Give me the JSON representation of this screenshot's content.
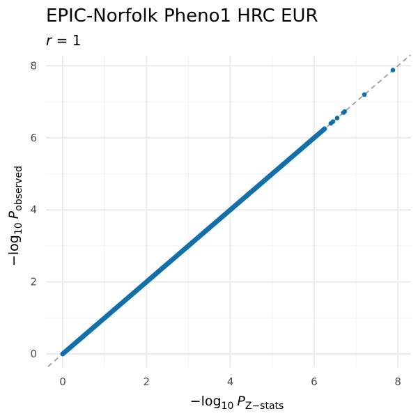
{
  "chart_data": {
    "type": "scatter",
    "title": "EPIC-Norfolk Pheno1 HRC EUR",
    "subtitle": {
      "symbol": "r",
      "rest": " = 1"
    },
    "xlabel": {
      "prefix": "−log",
      "base": "10",
      "var": "P",
      "subscript": "Z−stats"
    },
    "ylabel": {
      "prefix": "−log",
      "base": "10",
      "var": "P",
      "subscript": "observed"
    },
    "xlim": [
      -0.35,
      8.3
    ],
    "ylim": [
      -0.35,
      8.3
    ],
    "x_ticks": [
      0,
      2,
      4,
      6,
      8
    ],
    "y_ticks": [
      0,
      2,
      4,
      6,
      8
    ],
    "x_tick_labels": [
      "0",
      "2",
      "4",
      "6",
      "8"
    ],
    "y_tick_labels": [
      "0",
      "2",
      "4",
      "6",
      "8"
    ],
    "grid": true,
    "reference_line": {
      "slope": 1,
      "intercept": 0,
      "style": "dashed",
      "color": "#a6a6a6"
    },
    "point_color": "#1170aa",
    "dense_line": {
      "from": 0,
      "to": 6.25
    },
    "points": [
      {
        "x": 6.25,
        "y": 6.25
      },
      {
        "x": 6.4,
        "y": 6.4
      },
      {
        "x": 6.45,
        "y": 6.45
      },
      {
        "x": 6.55,
        "y": 6.55
      },
      {
        "x": 6.7,
        "y": 6.7
      },
      {
        "x": 6.73,
        "y": 6.73
      },
      {
        "x": 7.2,
        "y": 7.2
      },
      {
        "x": 7.88,
        "y": 7.88
      }
    ]
  }
}
